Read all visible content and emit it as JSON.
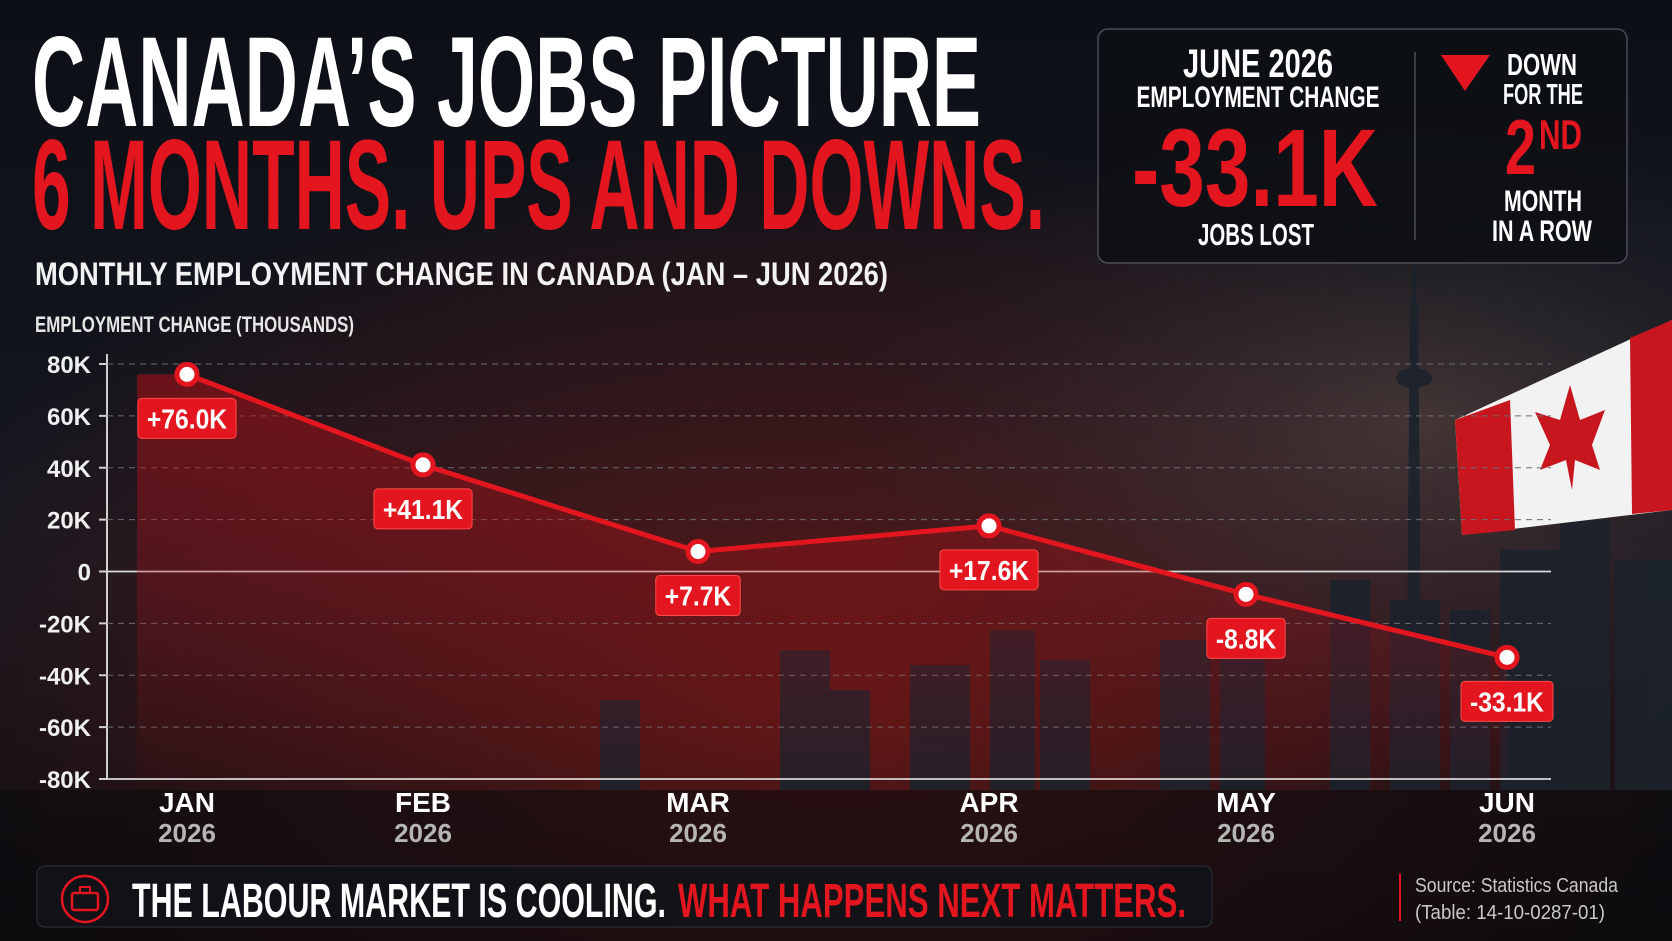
{
  "chart_data": {
    "type": "line",
    "title": "CANADA’S JOBS PICTURE",
    "subtitle": "6 MONTHS. UPS AND DOWNS.",
    "chart_title": "MONTHLY EMPLOYMENT CHANGE IN CANADA (JAN – JUN 2026)",
    "y_label": "EMPLOYMENT CHANGE (THOUSANDS)",
    "categories": [
      "JAN",
      "FEB",
      "MAR",
      "APR",
      "MAY",
      "JUN"
    ],
    "category_years": [
      "2026",
      "2026",
      "2026",
      "2026",
      "2026",
      "2026"
    ],
    "values": [
      76.0,
      41.1,
      7.7,
      17.6,
      -8.8,
      -33.1
    ],
    "value_labels": [
      "+76.0K",
      "+41.1K",
      "+7.7K",
      "+17.6K",
      "-8.8K",
      "-33.1K"
    ],
    "color": "#e3161f",
    "ylim": [
      -80,
      80
    ],
    "yticks": [
      {
        "value": -80,
        "label": "-80K"
      },
      {
        "value": -60,
        "label": "-60K"
      },
      {
        "value": -40,
        "label": "-40K"
      },
      {
        "value": -20,
        "label": "-20K"
      },
      0,
      {
        "value": 20,
        "label": "20K"
      },
      {
        "value": 40,
        "label": "40K"
      },
      {
        "value": 60,
        "label": "60K"
      },
      {
        "value": 80,
        "label": "80K"
      }
    ],
    "grid": true
  },
  "callout": {
    "period": "JUNE 2026",
    "metric": "EMPLOYMENT CHANGE",
    "figure": "-33.1K",
    "caption": "JOBS LOST",
    "streak_line1": "DOWN",
    "streak_line2": "FOR THE",
    "ordinal": "2",
    "ordinal_suffix": "ND",
    "streak_line3": "MONTH",
    "streak_line4": "IN A ROW"
  },
  "footer": {
    "message": "THE LABOUR MARKET IS COOLING.",
    "emphasis": "WHAT HAPPENS NEXT MATTERS.",
    "source": "Source: Statistics Canada",
    "table": "(Table: 14-10-0287-01)"
  }
}
